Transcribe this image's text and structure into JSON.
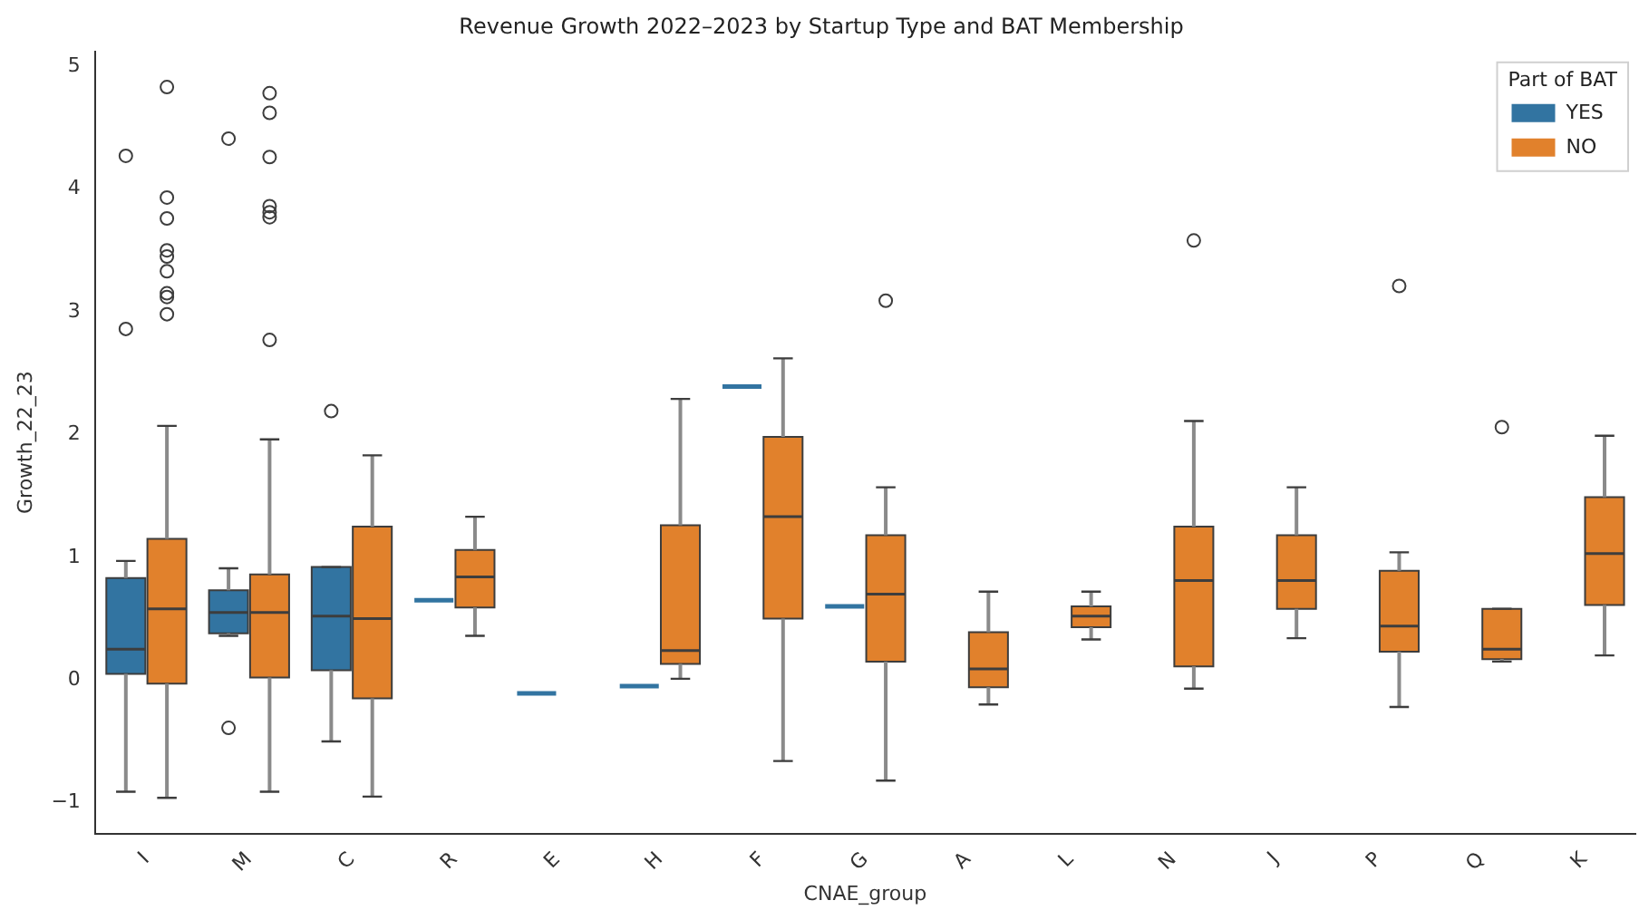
{
  "chart_data": {
    "type": "box",
    "title": "Revenue Growth 2022–2023 by Startup Type and BAT Membership",
    "xlabel": "CNAE_group",
    "ylabel": "Growth_22_23",
    "legend_title": "Part of BAT",
    "legend": "top right",
    "grid": false,
    "categories": [
      "I",
      "M",
      "C",
      "R",
      "E",
      "H",
      "F",
      "G",
      "A",
      "L",
      "N",
      "J",
      "P",
      "Q",
      "K"
    ],
    "ylim": [
      -1.25,
      5.12
    ],
    "yticks": [
      -1,
      0,
      1,
      2,
      3,
      4,
      5
    ],
    "series": [
      {
        "name": "YES",
        "color": "#3274a1",
        "boxes": [
          {
            "low": -0.91,
            "q1": 0.05,
            "median": 0.25,
            "q3": 0.83,
            "high": 0.97,
            "outliers": [
              4.27,
              2.86
            ]
          },
          {
            "low": 0.36,
            "q1": 0.38,
            "median": 0.55,
            "q3": 0.73,
            "high": 0.91,
            "outliers": [
              4.41,
              -0.39
            ]
          },
          {
            "low": -0.5,
            "q1": 0.08,
            "median": 0.52,
            "q3": 0.92,
            "high": 0.92,
            "outliers": [
              2.19
            ]
          },
          {
            "low": 0.65,
            "q1": 0.65,
            "median": 0.65,
            "q3": 0.65,
            "high": 0.65
          },
          {
            "low": -0.11,
            "q1": -0.11,
            "median": -0.11,
            "q3": -0.11,
            "high": -0.11
          },
          {
            "low": -0.05,
            "q1": -0.05,
            "median": -0.05,
            "q3": -0.05,
            "high": -0.05
          },
          {
            "low": 2.39,
            "q1": 2.39,
            "median": 2.39,
            "q3": 2.39,
            "high": 2.39
          },
          {
            "low": 0.6,
            "q1": 0.6,
            "median": 0.6,
            "q3": 0.6,
            "high": 0.6
          },
          null,
          null,
          null,
          null,
          null,
          null,
          null
        ]
      },
      {
        "name": "NO",
        "color": "#e1812c",
        "boxes": [
          {
            "low": -0.96,
            "q1": -0.03,
            "median": 0.58,
            "q3": 1.15,
            "high": 2.07,
            "outliers": [
              4.83,
              3.93,
              3.76,
              3.5,
              3.45,
              3.33,
              3.15,
              3.12,
              2.98
            ]
          },
          {
            "low": -0.91,
            "q1": 0.02,
            "median": 0.55,
            "q3": 0.86,
            "high": 1.96,
            "outliers": [
              4.78,
              4.62,
              4.26,
              3.86,
              3.81,
              3.77,
              2.77
            ]
          },
          {
            "low": -0.95,
            "q1": -0.15,
            "median": 0.5,
            "q3": 1.25,
            "high": 1.83
          },
          {
            "low": 0.36,
            "q1": 0.59,
            "median": 0.84,
            "q3": 1.06,
            "high": 1.33
          },
          null,
          {
            "low": 0.01,
            "q1": 0.13,
            "median": 0.24,
            "q3": 1.26,
            "high": 2.29
          },
          {
            "low": -0.66,
            "q1": 0.5,
            "median": 1.33,
            "q3": 1.98,
            "high": 2.62
          },
          {
            "low": -0.82,
            "q1": 0.15,
            "median": 0.7,
            "q3": 1.18,
            "high": 1.57,
            "outliers": [
              3.09
            ]
          },
          {
            "low": -0.2,
            "q1": -0.06,
            "median": 0.09,
            "q3": 0.39,
            "high": 0.72
          },
          {
            "low": 0.33,
            "q1": 0.43,
            "median": 0.52,
            "q3": 0.6,
            "high": 0.72
          },
          {
            "low": -0.07,
            "q1": 0.11,
            "median": 0.81,
            "q3": 1.25,
            "high": 2.11,
            "outliers": [
              3.58
            ]
          },
          {
            "low": 0.34,
            "q1": 0.58,
            "median": 0.81,
            "q3": 1.18,
            "high": 1.57
          },
          {
            "low": -0.22,
            "q1": 0.23,
            "median": 0.44,
            "q3": 0.89,
            "high": 1.04,
            "outliers": [
              3.21
            ]
          },
          {
            "low": 0.15,
            "q1": 0.17,
            "median": 0.25,
            "q3": 0.58,
            "high": 0.58,
            "outliers": [
              2.06
            ]
          },
          {
            "low": 0.2,
            "q1": 0.61,
            "median": 1.03,
            "q3": 1.49,
            "high": 1.99
          }
        ]
      }
    ]
  }
}
